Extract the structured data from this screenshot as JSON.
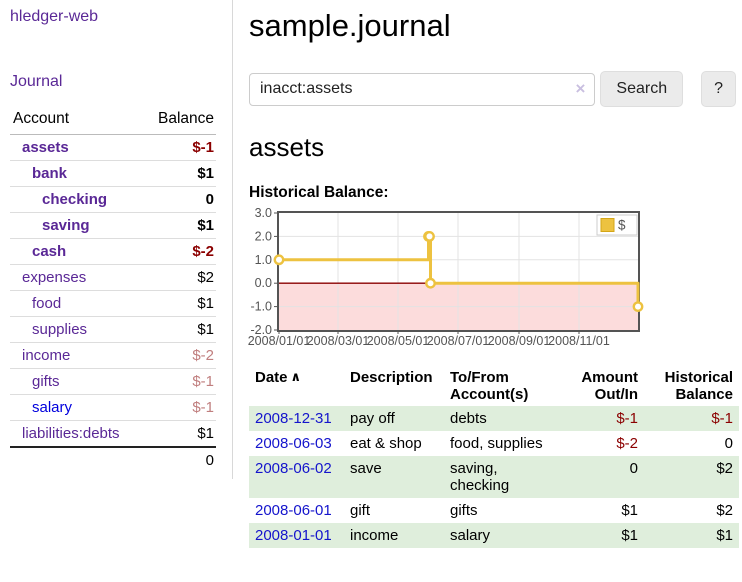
{
  "app": {
    "title": "hledger-web",
    "nav": {
      "journal": "Journal"
    }
  },
  "colors": {
    "link_purple": "#5a2896",
    "link_blue": "#0000dd",
    "negative_red": "#8b0000",
    "muted_negative": "#c07e7e",
    "row_stripe_green": "#dfeedc",
    "button_gray": "#ebebeb"
  },
  "sidebar": {
    "headers": {
      "account": "Account",
      "balance": "Balance"
    },
    "accounts": [
      {
        "name": "assets",
        "level": 0,
        "bold": true,
        "balance": "$-1",
        "balance_style": "neg"
      },
      {
        "name": "bank",
        "level": 1,
        "bold": true,
        "balance": "$1",
        "balance_style": ""
      },
      {
        "name": "checking",
        "level": 2,
        "bold": true,
        "balance": "0",
        "balance_style": ""
      },
      {
        "name": "saving",
        "level": 2,
        "bold": true,
        "balance": "$1",
        "balance_style": ""
      },
      {
        "name": "cash",
        "level": 1,
        "bold": true,
        "balance": "$-2",
        "balance_style": "neg"
      },
      {
        "name": "expenses",
        "level": 0,
        "bold": false,
        "balance": "$2",
        "balance_style": ""
      },
      {
        "name": "food",
        "level": 1,
        "bold": false,
        "balance": "$1",
        "balance_style": ""
      },
      {
        "name": "supplies",
        "level": 1,
        "bold": false,
        "balance": "$1",
        "balance_style": ""
      },
      {
        "name": "income",
        "level": 0,
        "bold": false,
        "balance": "$-2",
        "balance_style": "dim"
      },
      {
        "name": "gifts",
        "level": 1,
        "bold": false,
        "balance": "$-1",
        "balance_style": "dim"
      },
      {
        "name": "salary",
        "level": 1,
        "bold": false,
        "balance": "$-1",
        "balance_style": "dim",
        "link_style": "blue"
      },
      {
        "name": "liabilities:debts",
        "level": 0,
        "bold": false,
        "balance": "$1",
        "balance_style": ""
      }
    ],
    "total": "0"
  },
  "header": {
    "title": "sample.journal"
  },
  "search": {
    "value": "inacct:assets",
    "clear_icon": "×",
    "button": "Search",
    "help_button": "?"
  },
  "account_page": {
    "heading": "assets",
    "chart_label": "Historical Balance:"
  },
  "chart_data": {
    "type": "line",
    "title": "Historical Balance:",
    "step": true,
    "x_domain": [
      "2008-01-01",
      "2008-12-31"
    ],
    "ylim": [
      -2.0,
      3.0
    ],
    "y_ticks": [
      3.0,
      2.0,
      1.0,
      0.0,
      -1.0,
      -2.0
    ],
    "x_ticks": [
      "2008/01/01",
      "2008/03/01",
      "2008/05/01",
      "2008/07/01",
      "2008/09/01",
      "2008/11/01"
    ],
    "legend": "$",
    "legend_position": "top-right",
    "grid": true,
    "series": [
      {
        "name": "$",
        "points": [
          {
            "x": "2008-01-01",
            "y": 1
          },
          {
            "x": "2008-06-01",
            "y": 2
          },
          {
            "x": "2008-06-02",
            "y": 2
          },
          {
            "x": "2008-06-03",
            "y": 0
          },
          {
            "x": "2008-12-31",
            "y": -1
          }
        ]
      }
    ],
    "colors": {
      "line": "#edc240",
      "marker_fill": "#ffffff",
      "legend_square_border": "#d4a617",
      "zero_line": "#8b0000",
      "negative_region": "#fcdcdc",
      "grid": "#e3e3e3",
      "border": "#545454",
      "tick_text": "#545454"
    }
  },
  "transactions": {
    "headers": {
      "date": "Date",
      "sort_indicator": "∧",
      "description": "Description",
      "tofrom": "To/From Account(s)",
      "amount": "Amount Out/In",
      "balance": "Historical Balance"
    },
    "rows": [
      {
        "date": "2008-12-31",
        "description": "pay off",
        "accounts": "debts",
        "amount": "$-1",
        "amount_neg": true,
        "balance": "$-1",
        "balance_neg": true
      },
      {
        "date": "2008-06-03",
        "description": "eat & shop",
        "accounts": "food, supplies",
        "amount": "$-2",
        "amount_neg": true,
        "balance": "0",
        "balance_neg": false
      },
      {
        "date": "2008-06-02",
        "description": "save",
        "accounts": "saving, checking",
        "amount": "0",
        "amount_neg": false,
        "balance": "$2",
        "balance_neg": false
      },
      {
        "date": "2008-06-01",
        "description": "gift",
        "accounts": "gifts",
        "amount": "$1",
        "amount_neg": false,
        "balance": "$2",
        "balance_neg": false
      },
      {
        "date": "2008-01-01",
        "description": "income",
        "accounts": "salary",
        "amount": "$1",
        "amount_neg": false,
        "balance": "$1",
        "balance_neg": false
      }
    ]
  }
}
